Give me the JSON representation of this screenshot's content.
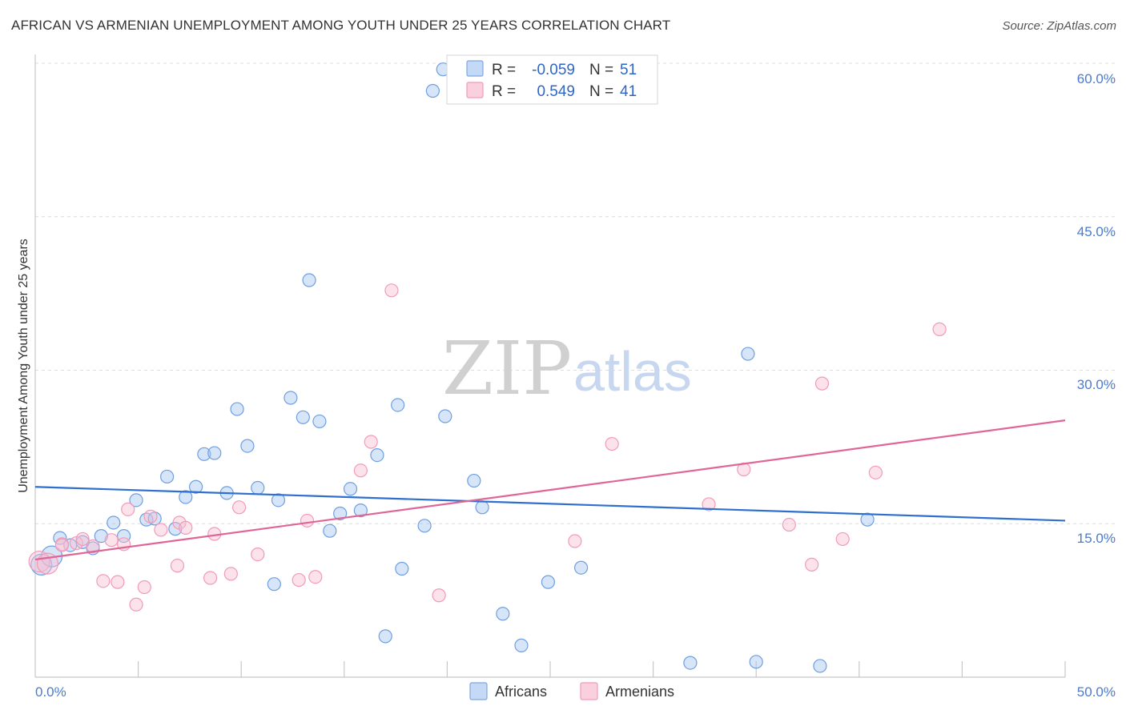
{
  "header": {
    "title": "AFRICAN VS ARMENIAN UNEMPLOYMENT AMONG YOUTH UNDER 25 YEARS CORRELATION CHART",
    "source": "Source: ZipAtlas.com"
  },
  "watermark": {
    "zip": "ZIP",
    "atlas": "atlas"
  },
  "legend": {
    "rows": [
      {
        "r_label": "R =",
        "r_value": "-0.059",
        "n_label": "N =",
        "n_value": "51"
      },
      {
        "r_label": "R =",
        "r_value": "0.549",
        "n_label": "N =",
        "n_value": "41"
      }
    ]
  },
  "bottom_legend": {
    "africans": "Africans",
    "armenians": "Armenians"
  },
  "chart_data": {
    "type": "scatter",
    "title": "AFRICAN VS ARMENIAN UNEMPLOYMENT AMONG YOUTH UNDER 25 YEARS CORRELATION CHART",
    "xlabel": "",
    "ylabel": "Unemployment Among Youth under 25 years",
    "xlim": [
      0,
      50
    ],
    "ylim": [
      0,
      60
    ],
    "x_tick_labels": [
      "0.0%",
      "50.0%"
    ],
    "y_ticks": [
      15,
      30,
      45,
      60
    ],
    "y_tick_labels": [
      "15.0%",
      "30.0%",
      "45.0%",
      "60.0%"
    ],
    "grid": true,
    "colors": {
      "africans": "#6f9fe0",
      "armenians": "#f19bb8",
      "africans_line": "#2f6fcf",
      "armenians_line": "#e06696"
    },
    "series": [
      {
        "name": "Africans",
        "r": -0.059,
        "n": 51,
        "trend": {
          "x": [
            0,
            50
          ],
          "y": [
            18.6,
            15.3
          ]
        },
        "points": [
          {
            "x": 0.3,
            "y": 11.0,
            "big": true
          },
          {
            "x": 0.8,
            "y": 11.8,
            "big": true
          },
          {
            "x": 1.2,
            "y": 13.6
          },
          {
            "x": 1.7,
            "y": 12.9
          },
          {
            "x": 2.3,
            "y": 13.2
          },
          {
            "x": 2.8,
            "y": 12.6
          },
          {
            "x": 3.2,
            "y": 13.8
          },
          {
            "x": 3.8,
            "y": 15.1
          },
          {
            "x": 4.3,
            "y": 13.8
          },
          {
            "x": 4.9,
            "y": 17.3
          },
          {
            "x": 5.4,
            "y": 15.4
          },
          {
            "x": 5.8,
            "y": 15.5
          },
          {
            "x": 6.4,
            "y": 19.6
          },
          {
            "x": 6.8,
            "y": 14.5
          },
          {
            "x": 7.3,
            "y": 17.6
          },
          {
            "x": 7.8,
            "y": 18.6
          },
          {
            "x": 8.2,
            "y": 21.8
          },
          {
            "x": 8.7,
            "y": 21.9
          },
          {
            "x": 9.3,
            "y": 18.0
          },
          {
            "x": 9.8,
            "y": 26.2
          },
          {
            "x": 10.3,
            "y": 22.6
          },
          {
            "x": 10.8,
            "y": 18.5
          },
          {
            "x": 11.6,
            "y": 9.1
          },
          {
            "x": 11.8,
            "y": 17.3
          },
          {
            "x": 12.4,
            "y": 27.3
          },
          {
            "x": 13.0,
            "y": 25.4
          },
          {
            "x": 13.3,
            "y": 38.8
          },
          {
            "x": 13.8,
            "y": 25.0
          },
          {
            "x": 14.3,
            "y": 14.3
          },
          {
            "x": 14.8,
            "y": 16.0
          },
          {
            "x": 15.3,
            "y": 18.4
          },
          {
            "x": 15.8,
            "y": 16.3
          },
          {
            "x": 16.6,
            "y": 21.7
          },
          {
            "x": 17.0,
            "y": 4.0
          },
          {
            "x": 17.6,
            "y": 26.6
          },
          {
            "x": 17.8,
            "y": 10.6
          },
          {
            "x": 18.9,
            "y": 14.8
          },
          {
            "x": 19.3,
            "y": 57.3
          },
          {
            "x": 19.8,
            "y": 59.4
          },
          {
            "x": 19.9,
            "y": 25.5
          },
          {
            "x": 21.3,
            "y": 19.2
          },
          {
            "x": 21.7,
            "y": 16.6
          },
          {
            "x": 22.7,
            "y": 6.2
          },
          {
            "x": 23.6,
            "y": 3.1
          },
          {
            "x": 24.9,
            "y": 9.3
          },
          {
            "x": 26.5,
            "y": 10.7
          },
          {
            "x": 31.8,
            "y": 1.4
          },
          {
            "x": 34.6,
            "y": 31.6
          },
          {
            "x": 35.0,
            "y": 1.5
          },
          {
            "x": 38.1,
            "y": 1.1
          },
          {
            "x": 40.4,
            "y": 15.4
          }
        ]
      },
      {
        "name": "Armenians",
        "r": 0.549,
        "n": 41,
        "trend": {
          "x": [
            0,
            50
          ],
          "y": [
            11.5,
            25.1
          ]
        },
        "points": [
          {
            "x": 0.2,
            "y": 11.3,
            "big": true
          },
          {
            "x": 0.6,
            "y": 11.1,
            "big": true
          },
          {
            "x": 1.3,
            "y": 13.0
          },
          {
            "x": 2.0,
            "y": 13.1
          },
          {
            "x": 2.3,
            "y": 13.5
          },
          {
            "x": 2.8,
            "y": 12.8
          },
          {
            "x": 3.3,
            "y": 9.4
          },
          {
            "x": 3.7,
            "y": 13.4
          },
          {
            "x": 4.0,
            "y": 9.3
          },
          {
            "x": 4.3,
            "y": 13.0
          },
          {
            "x": 4.5,
            "y": 16.4
          },
          {
            "x": 4.9,
            "y": 7.1
          },
          {
            "x": 5.3,
            "y": 8.8
          },
          {
            "x": 5.6,
            "y": 15.7
          },
          {
            "x": 6.1,
            "y": 14.4
          },
          {
            "x": 6.9,
            "y": 10.9
          },
          {
            "x": 7.0,
            "y": 15.1
          },
          {
            "x": 7.3,
            "y": 14.6
          },
          {
            "x": 8.5,
            "y": 9.7
          },
          {
            "x": 8.7,
            "y": 14.0
          },
          {
            "x": 9.5,
            "y": 10.1
          },
          {
            "x": 9.9,
            "y": 16.6
          },
          {
            "x": 10.8,
            "y": 12.0
          },
          {
            "x": 12.8,
            "y": 9.5
          },
          {
            "x": 13.2,
            "y": 15.3
          },
          {
            "x": 13.6,
            "y": 9.8
          },
          {
            "x": 15.8,
            "y": 20.2
          },
          {
            "x": 16.3,
            "y": 23.0
          },
          {
            "x": 17.3,
            "y": 37.8
          },
          {
            "x": 19.6,
            "y": 8.0
          },
          {
            "x": 26.2,
            "y": 13.3
          },
          {
            "x": 28.0,
            "y": 22.8
          },
          {
            "x": 32.7,
            "y": 16.9
          },
          {
            "x": 34.4,
            "y": 20.3
          },
          {
            "x": 36.6,
            "y": 14.9
          },
          {
            "x": 37.7,
            "y": 11.0
          },
          {
            "x": 38.2,
            "y": 28.7
          },
          {
            "x": 39.2,
            "y": 13.5
          },
          {
            "x": 40.8,
            "y": 20.0
          },
          {
            "x": 43.9,
            "y": 34.0
          },
          {
            "x": 1.3,
            "y": 12.9
          }
        ]
      }
    ]
  }
}
